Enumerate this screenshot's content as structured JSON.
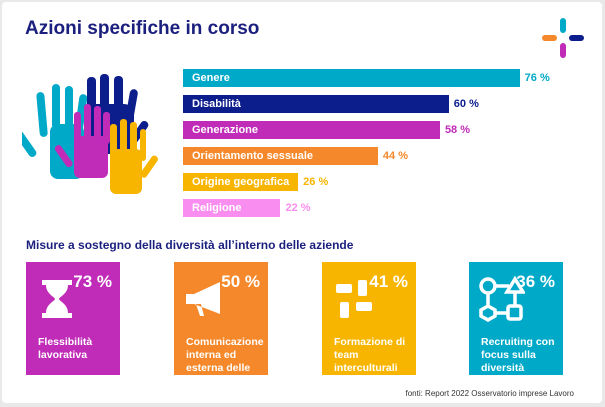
{
  "title": "Azioni specifiche in corso",
  "chart_data": {
    "type": "bar",
    "orientation": "horizontal",
    "title": "Azioni specifiche in corso",
    "categories": [
      "Genere",
      "Disabilità",
      "Generazione",
      "Orientamento sessuale",
      "Origine geografica",
      "Religione"
    ],
    "values": [
      76,
      60,
      58,
      44,
      26,
      22
    ],
    "value_labels": [
      "76 %",
      "60 %",
      "58 %",
      "44 %",
      "26 %",
      "22 %"
    ],
    "colors": [
      "#00a9c8",
      "#0c1d8c",
      "#c02bb8",
      "#f5882a",
      "#f7b500",
      "#f98ef0"
    ],
    "unit": "%"
  },
  "section_title": "Misure a sostegno della diversità all’interno delle aziende",
  "cards": [
    {
      "value": "73 %",
      "label": "Flessibilità lavorativa",
      "color": "#c02bb8",
      "icon": "hourglass-icon"
    },
    {
      "value": "50 %",
      "label": "Comunicazione interna ed esterna delle attività",
      "color": "#f5882a",
      "icon": "megaphone-icon"
    },
    {
      "value": "41 %",
      "label": "Formazione di team interculturali",
      "color": "#f7b500",
      "icon": "hands-circle-icon"
    },
    {
      "value": "36 %",
      "label": "Recruiting con focus sulla diversità",
      "color": "#00a9c8",
      "icon": "shapes-network-icon"
    }
  ],
  "source": "fonti: Report 2022 Osservatorio imprese Lavoro"
}
